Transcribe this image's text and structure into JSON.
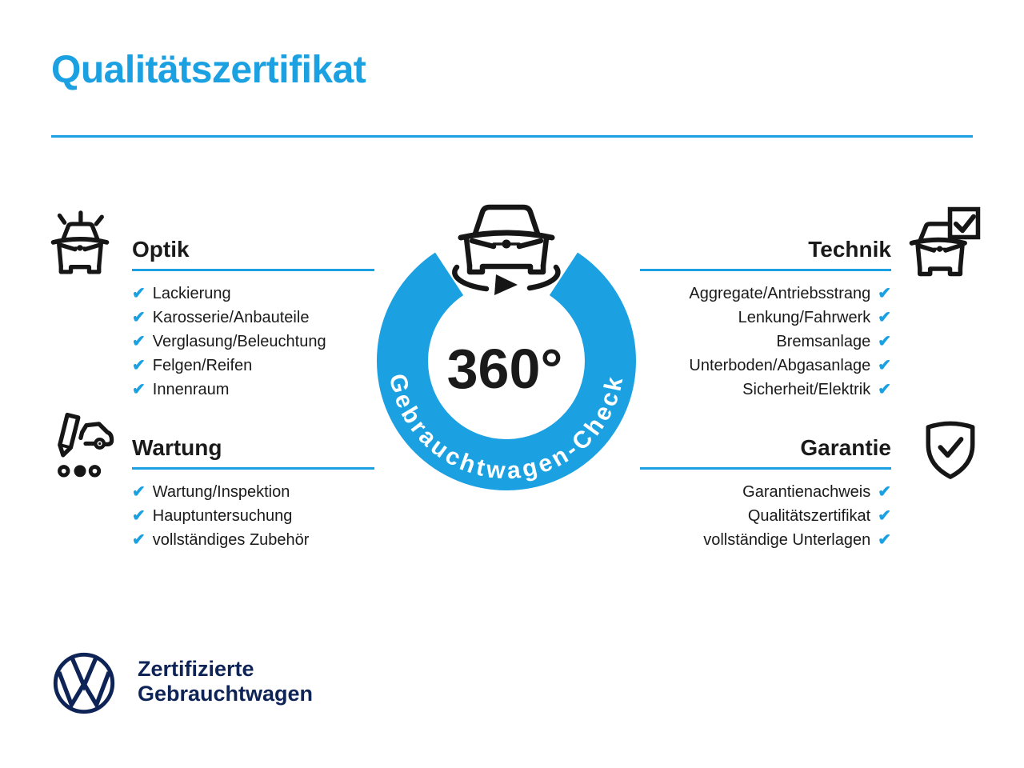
{
  "colors": {
    "accent_blue": "#1ba1e2",
    "brand_navy": "#0e2356",
    "text_dark": "#1a1a1a"
  },
  "header": {
    "title": "Qualitätszertifikat"
  },
  "badge": {
    "degrees_label": "360°",
    "ring_label": "Gebrauchtwagen-Check",
    "car_icon": "car-front-rotation-icon"
  },
  "sections": [
    {
      "id": "optik",
      "title": "Optik",
      "icon": "shiny-car-icon",
      "side": "left",
      "items": [
        "Lackierung",
        "Karosserie/Anbauteile",
        "Verglasung/Beleuchtung",
        "Felgen/Reifen",
        "Innenraum"
      ]
    },
    {
      "id": "wartung",
      "title": "Wartung",
      "icon": "pencil-car-checklist-icon",
      "side": "left",
      "items": [
        "Wartung/Inspektion",
        "Hauptuntersuchung",
        "vollständiges Zubehör"
      ]
    },
    {
      "id": "technik",
      "title": "Technik",
      "icon": "car-checkbox-icon",
      "side": "right",
      "items": [
        "Aggregate/Antriebsstrang",
        "Lenkung/Fahrwerk",
        "Bremsanlage",
        "Unterboden/Abgasanlage",
        "Sicherheit/Elektrik"
      ]
    },
    {
      "id": "garantie",
      "title": "Garantie",
      "icon": "shield-check-icon",
      "side": "right",
      "items": [
        "Garantienachweis",
        "Qualitätszertifikat",
        "vollständige Unterlagen"
      ]
    }
  ],
  "footer": {
    "brand_line1": "Zertifizierte",
    "brand_line2": "Gebrauchtwagen",
    "logo": "vw-logo"
  },
  "check_glyph": "✔"
}
